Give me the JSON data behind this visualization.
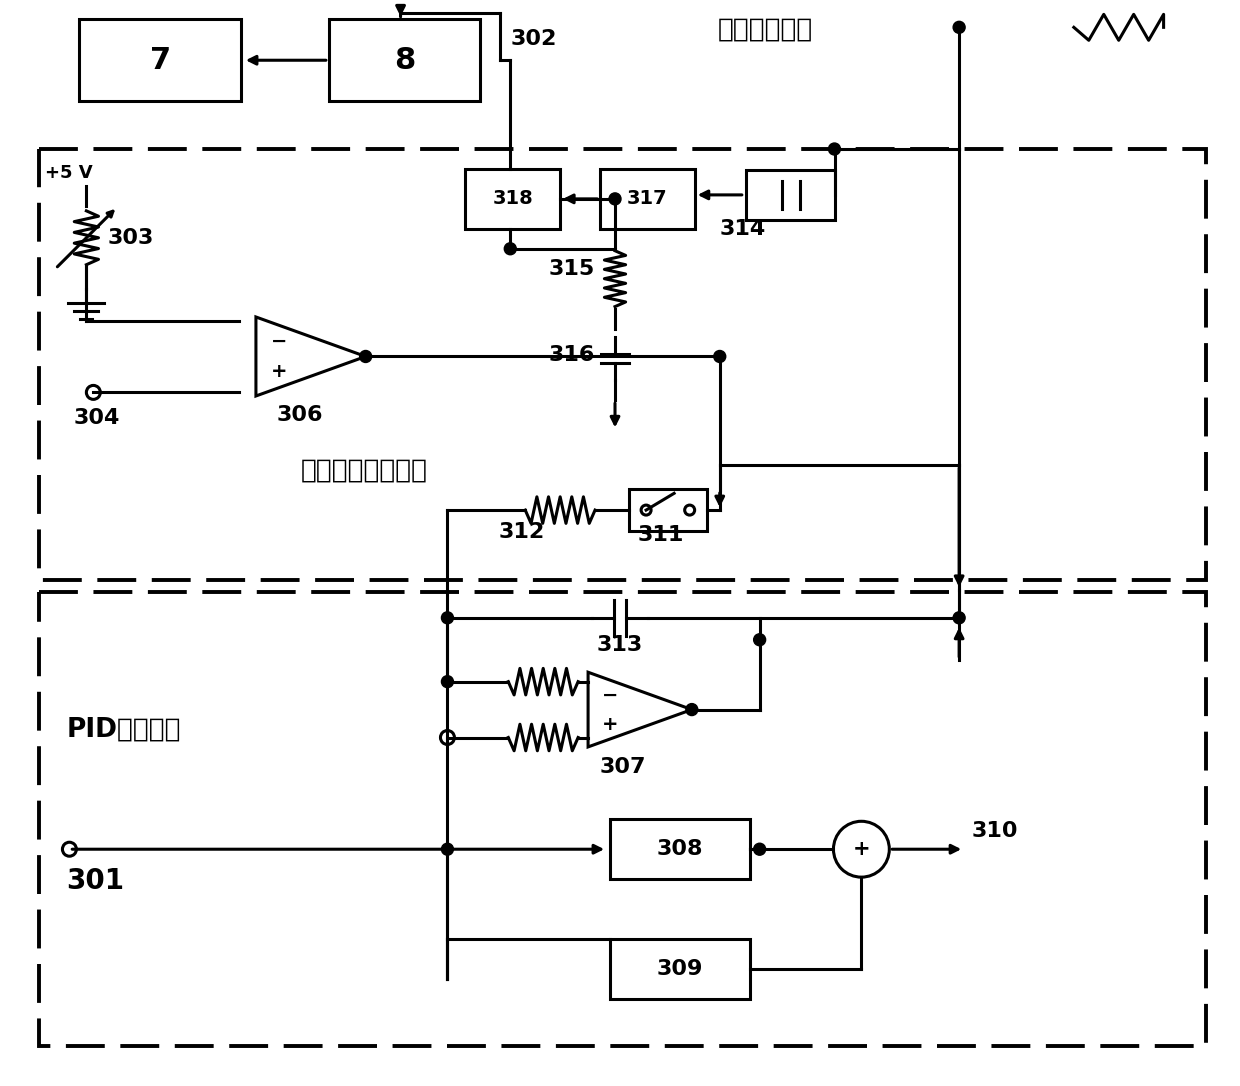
{
  "bg": "#ffffff",
  "lw": 2.2,
  "fig_w": 12.4,
  "fig_h": 10.86,
  "dpi": 100,
  "sweep_label": "扫腔信号发生",
  "auto_lock_label": "自动锁腔逻辑功能",
  "pid_label": "PID伺服控制",
  "plus5v_label": "+5 V",
  "nums": [
    "301",
    "302",
    "303",
    "304",
    "306",
    "307",
    "308",
    "309",
    "310",
    "311",
    "312",
    "313",
    "314",
    "315",
    "316",
    "317",
    "318",
    "7",
    "8"
  ]
}
